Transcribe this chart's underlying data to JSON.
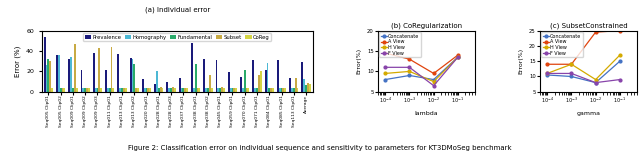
{
  "figure_caption": "Figure 2: Classification error on individual sequence and sensitivity to parameters for KT3DMoSeg benchmark",
  "subplot_a_title": "(a) Individual error",
  "subplot_b_title": "(b) CoRegularization",
  "subplot_c_title": "(c) SubsetConstrained",
  "bar_categories": [
    "Seq005 Clip01",
    "Seq005 Clip02",
    "Seq009 Clip01",
    "Seq009 Clip02",
    "Seq009 Clip03",
    "Seq011 Clip01",
    "Seq013 Clip01",
    "Seq013 Clip02",
    "Seq020 Clip01",
    "Seq028 Clip01",
    "Seq028 Clip03",
    "Seq037 Clip01",
    "Seq038 Clip01",
    "Seq038 Clip02",
    "Seq045 Clip01",
    "Seq059 Clip01",
    "Seq070 Clip01",
    "Seq071 Clip01",
    "Seq084 Clip01",
    "Seq085 Clip01",
    "Seq113 Clip01",
    "Average"
  ],
  "prevalence": [
    54,
    36,
    32,
    21,
    38,
    21,
    37,
    33,
    13,
    8,
    10,
    14,
    48,
    32,
    31,
    19,
    15,
    31,
    21,
    31,
    14,
    29
  ],
  "homography": [
    26,
    36,
    34,
    4,
    4,
    4,
    4,
    32,
    4,
    20,
    4,
    4,
    4,
    4,
    4,
    4,
    4,
    4,
    28,
    4,
    4,
    13
  ],
  "fundamental": [
    32,
    4,
    4,
    4,
    4,
    4,
    4,
    27,
    4,
    4,
    4,
    4,
    27,
    4,
    4,
    4,
    21,
    4,
    4,
    4,
    4,
    7
  ],
  "subset": [
    30,
    4,
    47,
    4,
    43,
    44,
    4,
    4,
    4,
    5,
    5,
    4,
    4,
    16,
    5,
    4,
    4,
    16,
    4,
    4,
    14,
    9
  ],
  "coreg": [
    4,
    4,
    4,
    4,
    4,
    4,
    4,
    4,
    4,
    4,
    4,
    4,
    4,
    4,
    4,
    4,
    4,
    20,
    4,
    4,
    4,
    8
  ],
  "bar_colors": {
    "Prevalence": "#1a1a7a",
    "Homography": "#4db8d4",
    "Fundamental": "#2aaa6a",
    "Subset": "#c8aa44",
    "CoReg": "#d4d444"
  },
  "lambda_values": [
    0.0001,
    0.001,
    0.01,
    0.1
  ],
  "coreg_concat": [
    8.0,
    9.0,
    8.0,
    13.5
  ],
  "coreg_aview": [
    14.5,
    13.0,
    9.5,
    14.0
  ],
  "coreg_hview": [
    9.5,
    10.0,
    7.5,
    13.5
  ],
  "coreg_fview": [
    11.0,
    11.0,
    6.5,
    13.5
  ],
  "gamma_values": [
    0.0001,
    0.001,
    0.01,
    0.1
  ],
  "subset_concat": [
    10.5,
    10.0,
    8.0,
    15.0
  ],
  "subset_aview": [
    14.0,
    14.0,
    24.5,
    25.0
  ],
  "subset_hview": [
    11.0,
    14.0,
    9.0,
    17.0
  ],
  "subset_fview": [
    11.0,
    11.0,
    8.0,
    9.0
  ],
  "line_colors": {
    "Concatenate": "#4472c4",
    "A View": "#e0440e",
    "H View": "#d4aa00",
    "F View": "#8844aa"
  },
  "bar_ylim": [
    0,
    60
  ],
  "coreg_ylim": [
    5,
    20
  ],
  "subset_ylim": [
    5,
    25
  ],
  "bar_ylabel": "Error (%)",
  "coreg_ylabel": "Error(%)",
  "subset_ylabel": "Error(%)"
}
